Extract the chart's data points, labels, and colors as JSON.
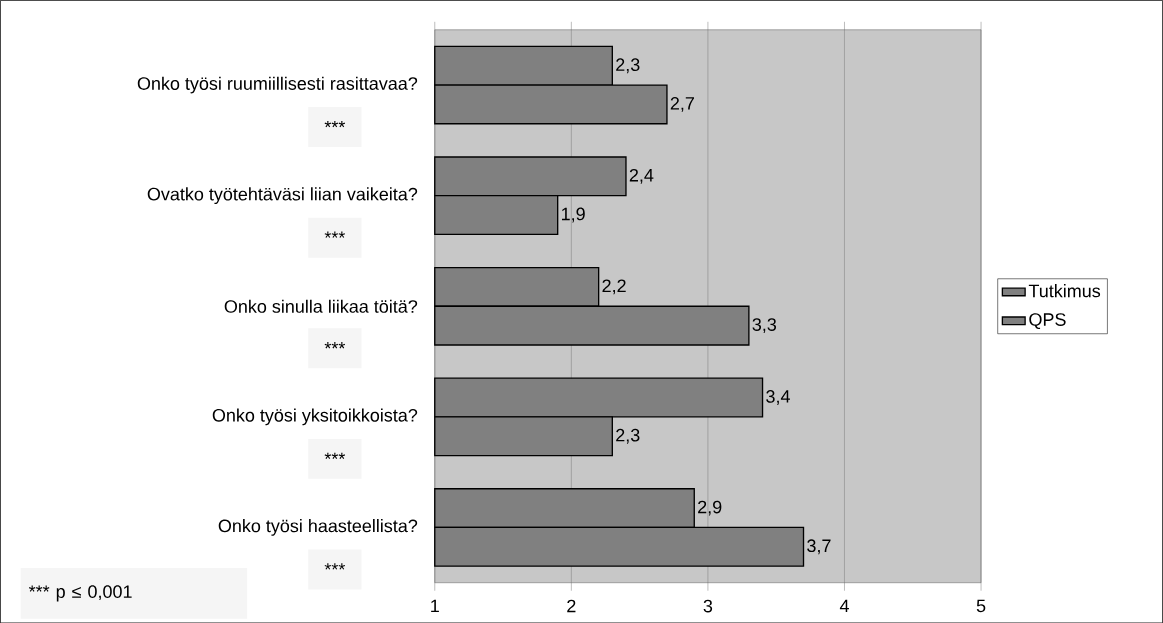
{
  "chart_data": {
    "type": "bar",
    "orientation": "horizontal",
    "categories": [
      "Onko työsi ruumiillisesti rasittavaa?",
      "Ovatko työtehtäväsi liian vaikeita?",
      "Onko sinulla liikaa töitä?",
      "Onko työsi yksitoikkoista?",
      "Onko työsi haasteellista?"
    ],
    "series": [
      {
        "name": "Tutkimus",
        "color": "#808080",
        "values": [
          2.3,
          2.4,
          2.2,
          3.4,
          2.9
        ],
        "value_labels": [
          "2,3",
          "2,4",
          "2,2",
          "3,4",
          "2,9"
        ]
      },
      {
        "name": "QPS",
        "color": "#808080",
        "values": [
          2.7,
          1.9,
          3.3,
          2.3,
          3.7
        ],
        "value_labels": [
          "2,7",
          "1,9",
          "3,3",
          "2,3",
          "3,7"
        ]
      }
    ],
    "xlim": [
      1,
      5
    ],
    "xticks": [
      1,
      2,
      3,
      4,
      5
    ],
    "grid": "x",
    "legend": "right",
    "annotations": [
      "***",
      "***",
      "***",
      "***",
      "***",
      "*** p ≤ 0,001"
    ]
  }
}
